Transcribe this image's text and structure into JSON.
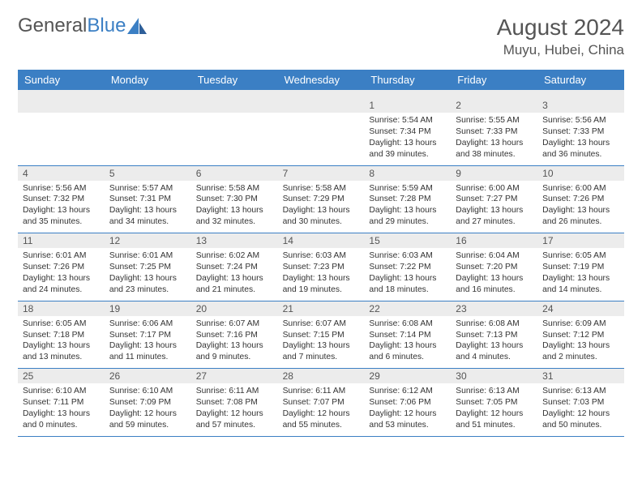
{
  "brand": {
    "part1": "General",
    "part2": "Blue"
  },
  "title": "August 2024",
  "location": "Muyu, Hubei, China",
  "colors": {
    "header_bg": "#3b7fc4",
    "header_text": "#ffffff",
    "daynum_bg": "#ececec",
    "rule": "#3b7fc4",
    "text": "#333333"
  },
  "day_names": [
    "Sunday",
    "Monday",
    "Tuesday",
    "Wednesday",
    "Thursday",
    "Friday",
    "Saturday"
  ],
  "weeks": [
    [
      null,
      null,
      null,
      null,
      {
        "n": "1",
        "sr": "5:54 AM",
        "ss": "7:34 PM",
        "dl": "13 hours and 39 minutes."
      },
      {
        "n": "2",
        "sr": "5:55 AM",
        "ss": "7:33 PM",
        "dl": "13 hours and 38 minutes."
      },
      {
        "n": "3",
        "sr": "5:56 AM",
        "ss": "7:33 PM",
        "dl": "13 hours and 36 minutes."
      }
    ],
    [
      {
        "n": "4",
        "sr": "5:56 AM",
        "ss": "7:32 PM",
        "dl": "13 hours and 35 minutes."
      },
      {
        "n": "5",
        "sr": "5:57 AM",
        "ss": "7:31 PM",
        "dl": "13 hours and 34 minutes."
      },
      {
        "n": "6",
        "sr": "5:58 AM",
        "ss": "7:30 PM",
        "dl": "13 hours and 32 minutes."
      },
      {
        "n": "7",
        "sr": "5:58 AM",
        "ss": "7:29 PM",
        "dl": "13 hours and 30 minutes."
      },
      {
        "n": "8",
        "sr": "5:59 AM",
        "ss": "7:28 PM",
        "dl": "13 hours and 29 minutes."
      },
      {
        "n": "9",
        "sr": "6:00 AM",
        "ss": "7:27 PM",
        "dl": "13 hours and 27 minutes."
      },
      {
        "n": "10",
        "sr": "6:00 AM",
        "ss": "7:26 PM",
        "dl": "13 hours and 26 minutes."
      }
    ],
    [
      {
        "n": "11",
        "sr": "6:01 AM",
        "ss": "7:26 PM",
        "dl": "13 hours and 24 minutes."
      },
      {
        "n": "12",
        "sr": "6:01 AM",
        "ss": "7:25 PM",
        "dl": "13 hours and 23 minutes."
      },
      {
        "n": "13",
        "sr": "6:02 AM",
        "ss": "7:24 PM",
        "dl": "13 hours and 21 minutes."
      },
      {
        "n": "14",
        "sr": "6:03 AM",
        "ss": "7:23 PM",
        "dl": "13 hours and 19 minutes."
      },
      {
        "n": "15",
        "sr": "6:03 AM",
        "ss": "7:22 PM",
        "dl": "13 hours and 18 minutes."
      },
      {
        "n": "16",
        "sr": "6:04 AM",
        "ss": "7:20 PM",
        "dl": "13 hours and 16 minutes."
      },
      {
        "n": "17",
        "sr": "6:05 AM",
        "ss": "7:19 PM",
        "dl": "13 hours and 14 minutes."
      }
    ],
    [
      {
        "n": "18",
        "sr": "6:05 AM",
        "ss": "7:18 PM",
        "dl": "13 hours and 13 minutes."
      },
      {
        "n": "19",
        "sr": "6:06 AM",
        "ss": "7:17 PM",
        "dl": "13 hours and 11 minutes."
      },
      {
        "n": "20",
        "sr": "6:07 AM",
        "ss": "7:16 PM",
        "dl": "13 hours and 9 minutes."
      },
      {
        "n": "21",
        "sr": "6:07 AM",
        "ss": "7:15 PM",
        "dl": "13 hours and 7 minutes."
      },
      {
        "n": "22",
        "sr": "6:08 AM",
        "ss": "7:14 PM",
        "dl": "13 hours and 6 minutes."
      },
      {
        "n": "23",
        "sr": "6:08 AM",
        "ss": "7:13 PM",
        "dl": "13 hours and 4 minutes."
      },
      {
        "n": "24",
        "sr": "6:09 AM",
        "ss": "7:12 PM",
        "dl": "13 hours and 2 minutes."
      }
    ],
    [
      {
        "n": "25",
        "sr": "6:10 AM",
        "ss": "7:11 PM",
        "dl": "13 hours and 0 minutes."
      },
      {
        "n": "26",
        "sr": "6:10 AM",
        "ss": "7:09 PM",
        "dl": "12 hours and 59 minutes."
      },
      {
        "n": "27",
        "sr": "6:11 AM",
        "ss": "7:08 PM",
        "dl": "12 hours and 57 minutes."
      },
      {
        "n": "28",
        "sr": "6:11 AM",
        "ss": "7:07 PM",
        "dl": "12 hours and 55 minutes."
      },
      {
        "n": "29",
        "sr": "6:12 AM",
        "ss": "7:06 PM",
        "dl": "12 hours and 53 minutes."
      },
      {
        "n": "30",
        "sr": "6:13 AM",
        "ss": "7:05 PM",
        "dl": "12 hours and 51 minutes."
      },
      {
        "n": "31",
        "sr": "6:13 AM",
        "ss": "7:03 PM",
        "dl": "12 hours and 50 minutes."
      }
    ]
  ],
  "labels": {
    "sunrise": "Sunrise:",
    "sunset": "Sunset:",
    "daylight": "Daylight:"
  }
}
